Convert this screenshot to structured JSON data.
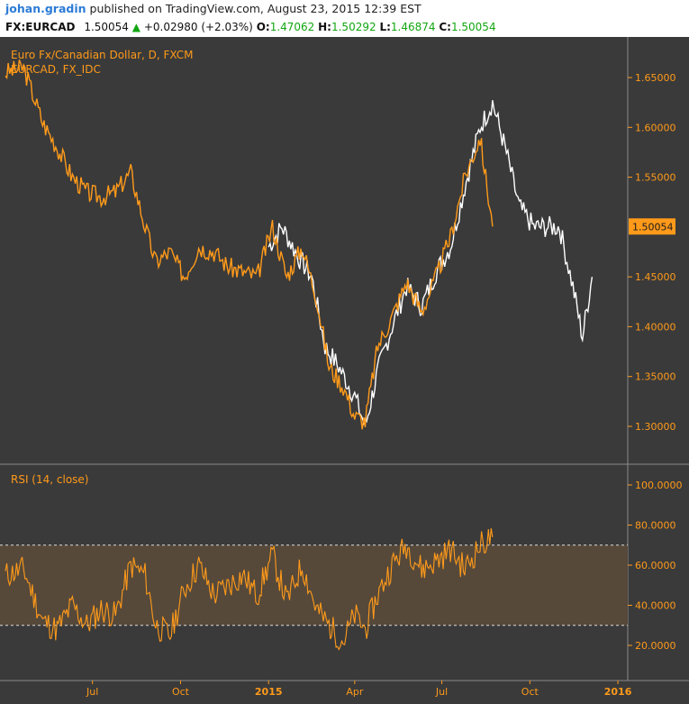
{
  "header": {
    "user": "johan.gradin",
    "published": "published on TradingView.com, August 23, 2015 12:39 EST",
    "symbol": "FX:EURCAD",
    "last": "1.50054",
    "change_arrow": "▲",
    "change": "+0.02980 (+2.03%)",
    "o_label": "O:",
    "o_value": "1.47062",
    "h_label": "H:",
    "h_value": "1.50292",
    "l_label": "L:",
    "l_value": "1.46874",
    "c_label": "C:",
    "c_value": "1.50054"
  },
  "colors": {
    "panel_bg": "#3a3a3a",
    "primary_series": "#ff9a1a",
    "compare_series": "#ffffff",
    "rsi_band": "#56493a",
    "price_badge": "#ff9a1a"
  },
  "chart_data": [
    {
      "type": "line",
      "title": "Euro Fx/Canadian Dollar, D, FXCM",
      "x_tick_labels": [
        "Jul",
        "Oct",
        "2015",
        "Apr",
        "Jul",
        "Oct",
        "2016"
      ],
      "y_tick_labels": [
        "1.65000",
        "1.60000",
        "1.55000",
        "1.45000",
        "1.40000",
        "1.35000",
        "1.30000"
      ],
      "ylim": [
        1.27,
        1.69
      ],
      "last_price_label": "1.50054",
      "grid": false,
      "series": [
        {
          "name": "Euro Fx/Canadian Dollar, D, FXCM",
          "color": "#ff9a1a",
          "x": [
            "2014-04-01",
            "2014-04-20",
            "2014-05-10",
            "2014-05-25",
            "2014-06-10",
            "2014-06-25",
            "2014-07-10",
            "2014-07-25",
            "2014-08-10",
            "2014-08-25",
            "2014-09-05",
            "2014-09-20",
            "2014-10-05",
            "2014-10-20",
            "2014-11-05",
            "2014-11-20",
            "2014-12-05",
            "2014-12-20",
            "2015-01-05",
            "2015-01-20",
            "2015-02-05",
            "2015-02-20",
            "2015-03-05",
            "2015-03-20",
            "2015-04-01",
            "2015-04-12",
            "2015-04-25",
            "2015-05-10",
            "2015-05-25",
            "2015-06-10",
            "2015-06-25",
            "2015-07-10",
            "2015-07-25",
            "2015-08-10",
            "2015-08-23"
          ],
          "y": [
            1.655,
            1.66,
            1.605,
            1.58,
            1.55,
            1.535,
            1.53,
            1.535,
            1.555,
            1.5,
            1.465,
            1.475,
            1.45,
            1.48,
            1.475,
            1.46,
            1.455,
            1.45,
            1.5,
            1.45,
            1.48,
            1.43,
            1.36,
            1.34,
            1.31,
            1.305,
            1.38,
            1.41,
            1.445,
            1.415,
            1.45,
            1.49,
            1.55,
            1.59,
            1.5005
          ]
        },
        {
          "name": "EURCAD, FX_IDC",
          "color": "#ffffff",
          "x": [
            "2015-01-01",
            "2015-01-15",
            "2015-02-01",
            "2015-02-15",
            "2015-03-01",
            "2015-03-15",
            "2015-04-01",
            "2015-04-12",
            "2015-04-25",
            "2015-05-10",
            "2015-05-25",
            "2015-06-10",
            "2015-06-25",
            "2015-07-10",
            "2015-07-25",
            "2015-08-10",
            "2015-08-23",
            "2015-09-05",
            "2015-09-20",
            "2015-10-05",
            "2015-10-20",
            "2015-11-01",
            "2015-11-15",
            "2015-11-25",
            "2015-12-05"
          ],
          "y": [
            1.48,
            1.5,
            1.47,
            1.45,
            1.38,
            1.36,
            1.33,
            1.3,
            1.355,
            1.4,
            1.44,
            1.42,
            1.455,
            1.48,
            1.54,
            1.6,
            1.625,
            1.58,
            1.52,
            1.5,
            1.5,
            1.5,
            1.44,
            1.39,
            1.45
          ]
        }
      ]
    },
    {
      "type": "line",
      "title": "RSI (14, close)",
      "y_tick_labels": [
        "100.0000",
        "80.0000",
        "60.0000",
        "40.0000",
        "20.0000"
      ],
      "ylim": [
        5,
        108
      ],
      "levels": [
        70,
        30
      ],
      "series": [
        {
          "name": "RSI (14, close)",
          "color": "#ff9a1a",
          "x": [
            "2014-04-01",
            "2014-04-20",
            "2014-05-10",
            "2014-05-25",
            "2014-06-10",
            "2014-06-25",
            "2014-07-10",
            "2014-07-25",
            "2014-08-10",
            "2014-08-25",
            "2014-09-05",
            "2014-09-20",
            "2014-10-05",
            "2014-10-20",
            "2014-11-05",
            "2014-11-20",
            "2014-12-05",
            "2014-12-20",
            "2015-01-05",
            "2015-01-20",
            "2015-02-05",
            "2015-02-20",
            "2015-03-05",
            "2015-03-20",
            "2015-04-01",
            "2015-04-12",
            "2015-04-25",
            "2015-05-10",
            "2015-05-25",
            "2015-06-10",
            "2015-06-25",
            "2015-07-10",
            "2015-07-25",
            "2015-08-10",
            "2015-08-23"
          ],
          "y": [
            55,
            58,
            32,
            28,
            40,
            30,
            38,
            35,
            60,
            55,
            30,
            25,
            48,
            60,
            45,
            50,
            55,
            45,
            65,
            42,
            60,
            38,
            30,
            22,
            35,
            28,
            45,
            60,
            70,
            58,
            62,
            68,
            58,
            70,
            74
          ]
        }
      ]
    }
  ]
}
